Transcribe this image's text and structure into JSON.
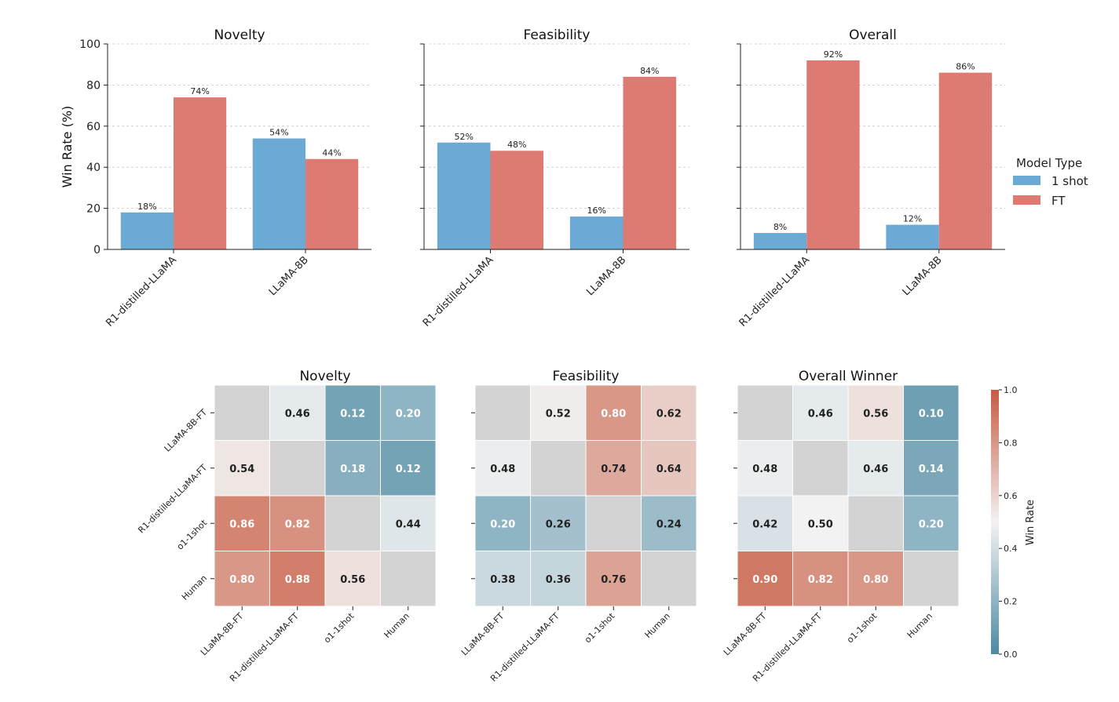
{
  "chart_data": [
    {
      "type": "bar",
      "title": "Novelty",
      "categories": [
        "R1-distilled-LLaMA",
        "LLaMA-8B"
      ],
      "series": [
        {
          "name": "1 shot",
          "values": [
            18,
            54
          ],
          "labels": [
            "18%",
            "54%"
          ]
        },
        {
          "name": "FT",
          "values": [
            74,
            44
          ],
          "labels": [
            "74%",
            "44%"
          ]
        }
      ],
      "ylabel": "Win Rate (%)",
      "ylim": [
        0,
        100
      ],
      "yticks": [
        "0",
        "20",
        "40",
        "60",
        "80",
        "100"
      ],
      "grid": true
    },
    {
      "type": "bar",
      "title": "Feasibility",
      "categories": [
        "R1-distilled-LLaMA",
        "LLaMA-8B"
      ],
      "series": [
        {
          "name": "1 shot",
          "values": [
            52,
            16
          ],
          "labels": [
            "52%",
            "16%"
          ]
        },
        {
          "name": "FT",
          "values": [
            48,
            84
          ],
          "labels": [
            "48%",
            "84%"
          ]
        }
      ],
      "ylim": [
        0,
        100
      ],
      "grid": true
    },
    {
      "type": "bar",
      "title": "Overall",
      "categories": [
        "R1-distilled-LLaMA",
        "LLaMA-8B"
      ],
      "series": [
        {
          "name": "1 shot",
          "values": [
            8,
            12
          ],
          "labels": [
            "8%",
            "12%"
          ]
        },
        {
          "name": "FT",
          "values": [
            92,
            86
          ],
          "labels": [
            "92%",
            "86%"
          ]
        }
      ],
      "ylim": [
        0,
        100
      ],
      "grid": true,
      "legend": {
        "title": "Model Type",
        "position": "right",
        "entries": [
          "1 shot",
          "FT"
        ]
      }
    },
    {
      "type": "heatmap",
      "title": "Novelty",
      "rows": [
        "LLaMA-8B-FT",
        "R1-distilled-LLaMA-FT",
        "o1-1shot",
        "Human"
      ],
      "cols": [
        "LLaMA-8B-FT",
        "R1-distilled-LLaMA-FT",
        "o1-1shot",
        "Human"
      ],
      "values": [
        [
          null,
          0.46,
          0.12,
          0.2
        ],
        [
          0.54,
          null,
          0.18,
          0.12
        ],
        [
          0.86,
          0.82,
          null,
          0.44
        ],
        [
          0.8,
          0.88,
          0.56,
          null
        ]
      ],
      "labels": [
        [
          "",
          "0.46",
          "0.12",
          "0.20"
        ],
        [
          "0.54",
          "",
          "0.18",
          "0.12"
        ],
        [
          "0.86",
          "0.82",
          "",
          "0.44"
        ],
        [
          "0.80",
          "0.88",
          "0.56",
          ""
        ]
      ]
    },
    {
      "type": "heatmap",
      "title": "Feasibility",
      "rows": [
        "LLaMA-8B-FT",
        "R1-distilled-LLaMA-FT",
        "o1-1shot",
        "Human"
      ],
      "cols": [
        "LLaMA-8B-FT",
        "R1-distilled-LLaMA-FT",
        "o1-1shot",
        "Human"
      ],
      "values": [
        [
          null,
          0.52,
          0.8,
          0.62
        ],
        [
          0.48,
          null,
          0.74,
          0.64
        ],
        [
          0.2,
          0.26,
          null,
          0.24
        ],
        [
          0.38,
          0.36,
          0.76,
          null
        ]
      ],
      "labels": [
        [
          "",
          "0.52",
          "0.80",
          "0.62"
        ],
        [
          "0.48",
          "",
          "0.74",
          "0.64"
        ],
        [
          "0.20",
          "0.26",
          "",
          "0.24"
        ],
        [
          "0.38",
          "0.36",
          "0.76",
          ""
        ]
      ]
    },
    {
      "type": "heatmap",
      "title": "Overall Winner",
      "rows": [
        "LLaMA-8B-FT",
        "R1-distilled-LLaMA-FT",
        "o1-1shot",
        "Human"
      ],
      "cols": [
        "LLaMA-8B-FT",
        "R1-distilled-LLaMA-FT",
        "o1-1shot",
        "Human"
      ],
      "values": [
        [
          null,
          0.46,
          0.56,
          0.1
        ],
        [
          0.48,
          null,
          0.46,
          0.14
        ],
        [
          0.42,
          0.5,
          null,
          0.2
        ],
        [
          0.9,
          0.82,
          0.8,
          null
        ]
      ],
      "labels": [
        [
          "",
          "0.46",
          "0.56",
          "0.10"
        ],
        [
          "0.48",
          "",
          "0.46",
          "0.14"
        ],
        [
          "0.42",
          "0.50",
          "",
          "0.20"
        ],
        [
          "0.90",
          "0.82",
          "0.80",
          ""
        ]
      ]
    }
  ],
  "colorbar": {
    "label": "Win Rate",
    "range": [
      0,
      1
    ],
    "ticks": [
      "0.0",
      "0.2",
      "0.4",
      "0.6",
      "0.8",
      "1.0"
    ]
  },
  "colors": {
    "one_shot": "#6aaad4",
    "ft": "#dd7a71",
    "cmap_low": "#4d8aa3",
    "cmap_mid": "#f2f2f2",
    "cmap_high": "#c85a40",
    "diag": "#d3d3d3"
  }
}
